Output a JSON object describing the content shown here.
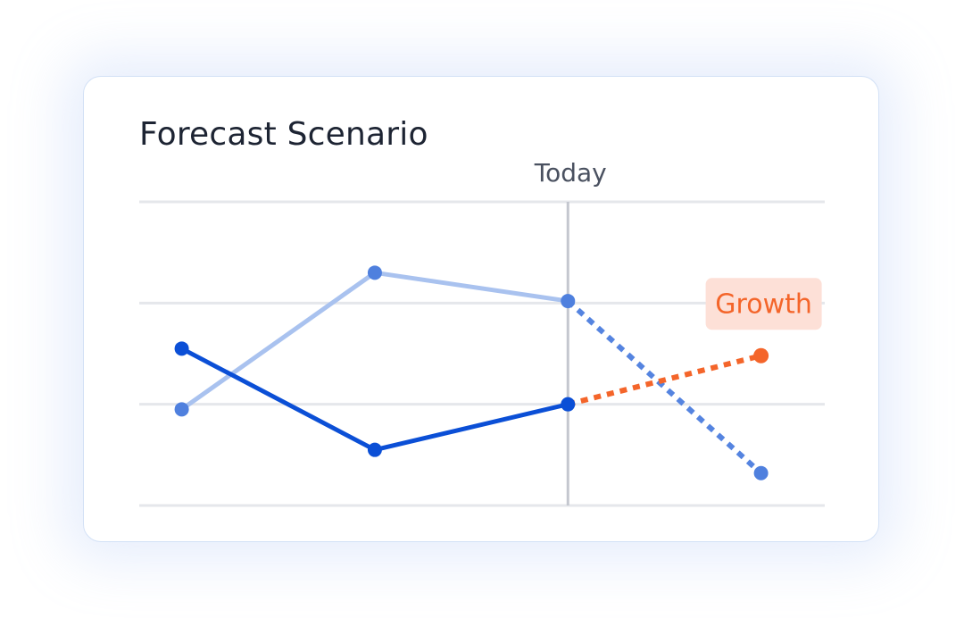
{
  "card": {
    "title": "Forecast Scenario"
  },
  "colors": {
    "grid": "#e5e7eb",
    "today_line": "#c4c7cf",
    "today_label": "#4a5160",
    "series_dark": "#0b4fd6",
    "series_light": "#a9c2ef",
    "series_light_forecast": "#5584e0",
    "growth": "#f4652a",
    "growth_badge_bg": "#fde0d7"
  },
  "chart_data": {
    "type": "line",
    "title": "Forecast Scenario",
    "xlabel": "",
    "ylabel": "",
    "x": [
      1,
      2,
      3,
      4
    ],
    "xlim": [
      0.78,
      4.33
    ],
    "ylim": [
      0,
      3
    ],
    "grid": true,
    "reference_line": {
      "x": 3,
      "label": "Today"
    },
    "series": [
      {
        "name": "",
        "style": "dark",
        "actual": [
          {
            "x": 1,
            "y": 1.55
          },
          {
            "x": 2,
            "y": 0.55
          },
          {
            "x": 3,
            "y": 1.0
          }
        ],
        "forecast": [
          {
            "x": 3,
            "y": 1.0
          },
          {
            "x": 4,
            "y": 1.48
          }
        ],
        "forecast_label": "Growth"
      },
      {
        "name": "",
        "style": "light",
        "actual": [
          {
            "x": 1,
            "y": 0.95
          },
          {
            "x": 2,
            "y": 2.3
          },
          {
            "x": 3,
            "y": 2.02
          }
        ],
        "forecast": [
          {
            "x": 3,
            "y": 2.02
          },
          {
            "x": 4,
            "y": 0.32
          }
        ],
        "forecast_label": ""
      }
    ]
  }
}
